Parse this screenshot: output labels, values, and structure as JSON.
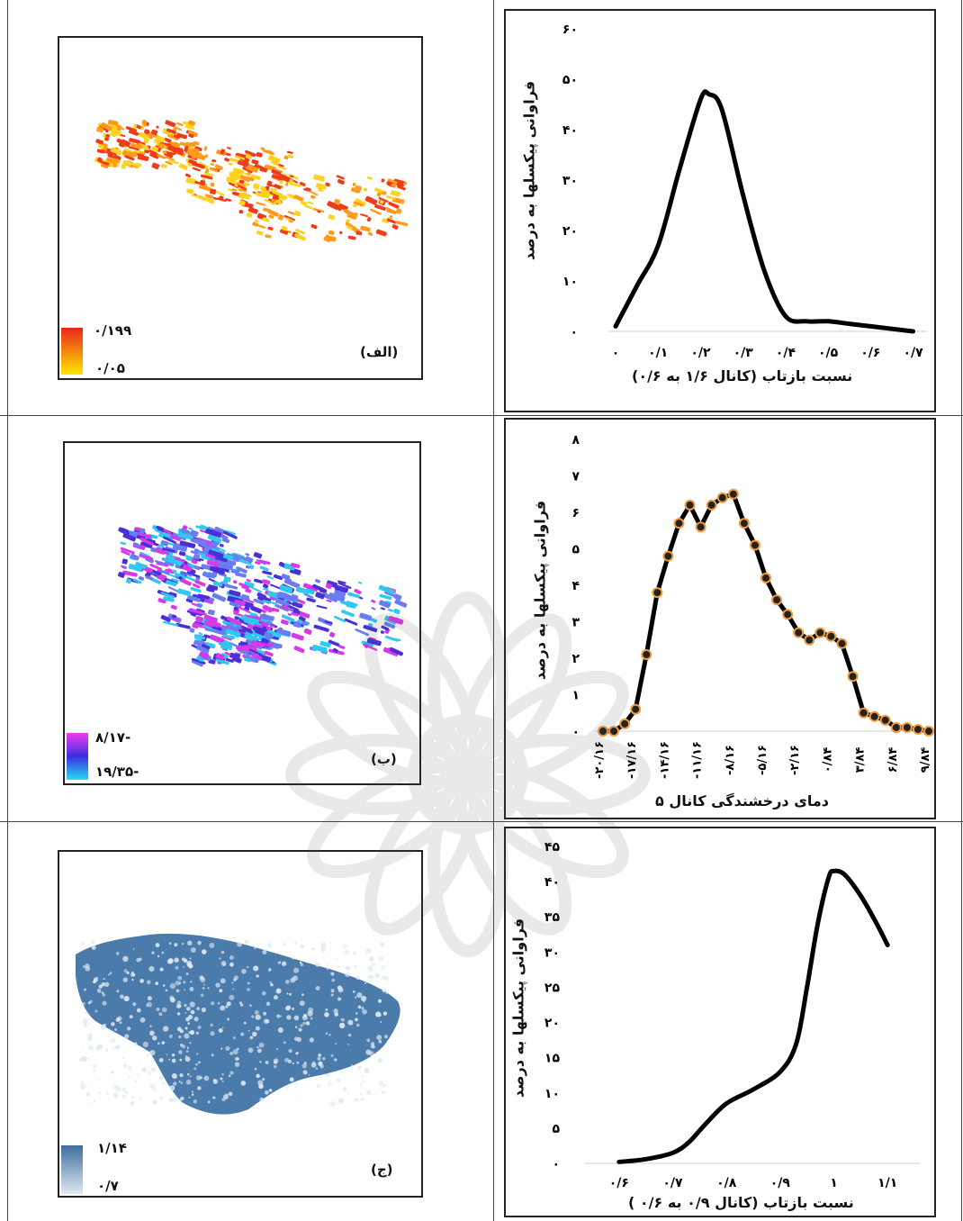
{
  "panels": [
    {
      "id": "alef",
      "label": "(الف)",
      "legend": {
        "max": "۰/۱۹۹",
        "min": "۰/۰۵",
        "colors": [
          "#e8261b",
          "#ffe600"
        ]
      },
      "map_colors": [
        "#ee3b1c",
        "#ff9a1a",
        "#ffd21f"
      ]
    },
    {
      "id": "be",
      "label": "(ب)",
      "legend": {
        "max": "-۸/۱۷",
        "min": "-۱۹/۳۵",
        "colors": [
          "#f33cf0",
          "#3a2ee0",
          "#2ad9f7"
        ]
      },
      "map_colors": [
        "#d63ae8",
        "#4b2fd9",
        "#6a7cf2",
        "#2fc8ef"
      ]
    },
    {
      "id": "jim",
      "label": "(ج)",
      "legend": {
        "max": "۱/۱۴",
        "min": "۰/۷",
        "colors": [
          "#3f6d9c",
          "#dfe9f3"
        ]
      },
      "map_colors": [
        "#4a7bab",
        "#dfe9f3"
      ]
    }
  ],
  "chart_data": [
    {
      "type": "line",
      "xlabel": "نسبت بازتاب (کانال ۱/۶ به ۰/۶)",
      "ylabel": "فراوانی پیکسلها به درصد",
      "x_ticks": [
        {
          "value": 0,
          "label": "۰"
        },
        {
          "value": 0.1,
          "label": "۰/۱"
        },
        {
          "value": 0.2,
          "label": "۰/۲"
        },
        {
          "value": 0.3,
          "label": "۰/۳"
        },
        {
          "value": 0.4,
          "label": "۰/۴"
        },
        {
          "value": 0.5,
          "label": "۰/۵"
        },
        {
          "value": 0.6,
          "label": "۰/۶"
        },
        {
          "value": 0.7,
          "label": "۰/۷"
        }
      ],
      "y_ticks": [
        {
          "value": 0,
          "label": "۰"
        },
        {
          "value": 10,
          "label": "۱۰"
        },
        {
          "value": 20,
          "label": "۲۰"
        },
        {
          "value": 30,
          "label": "۳۰"
        },
        {
          "value": 40,
          "label": "۴۰"
        },
        {
          "value": 50,
          "label": "۵۰"
        },
        {
          "value": 60,
          "label": "۶۰"
        }
      ],
      "xlim": [
        0,
        0.72
      ],
      "ylim": [
        0,
        60
      ],
      "x": [
        0,
        0.05,
        0.1,
        0.15,
        0.2,
        0.22,
        0.25,
        0.3,
        0.35,
        0.4,
        0.45,
        0.5,
        0.55,
        0.6,
        0.65,
        0.7
      ],
      "y": [
        1,
        9,
        17,
        32,
        46,
        47,
        44,
        27,
        12,
        3,
        2,
        2,
        1.5,
        1,
        0.5,
        0
      ],
      "markers": false,
      "grid": false
    },
    {
      "type": "line",
      "xlabel": "دمای درخشندگی کانال ۵",
      "ylabel": "فراوانی پیکسلها به درصد",
      "x_ticks": [
        {
          "value": -20.16,
          "label": "-۲۰/۱۶"
        },
        {
          "value": -17.16,
          "label": "-۱۷/۱۶"
        },
        {
          "value": -14.16,
          "label": "-۱۴/۱۶"
        },
        {
          "value": -11.16,
          "label": "-۱۱/۱۶"
        },
        {
          "value": -8.16,
          "label": "-۸/۱۶"
        },
        {
          "value": -5.16,
          "label": "-۵/۱۶"
        },
        {
          "value": -2.16,
          "label": "-۲/۱۶"
        },
        {
          "value": 0.84,
          "label": "۰/۸۴"
        },
        {
          "value": 3.84,
          "label": "۳/۸۴"
        },
        {
          "value": 6.84,
          "label": "۶/۸۴"
        },
        {
          "value": 9.84,
          "label": "۹/۸۴"
        }
      ],
      "y_ticks": [
        {
          "value": 0,
          "label": "۰"
        },
        {
          "value": 1,
          "label": "۱"
        },
        {
          "value": 2,
          "label": "۲"
        },
        {
          "value": 3,
          "label": "۳"
        },
        {
          "value": 4,
          "label": "۴"
        },
        {
          "value": 5,
          "label": "۵"
        },
        {
          "value": 6,
          "label": "۶"
        },
        {
          "value": 7,
          "label": "۷"
        },
        {
          "value": 8,
          "label": "۸"
        }
      ],
      "xlim": [
        -20.16,
        9.84
      ],
      "ylim": [
        0,
        8
      ],
      "x": [
        -20.16,
        -19.16,
        -18.16,
        -17.16,
        -16.16,
        -15.16,
        -14.16,
        -13.16,
        -12.16,
        -11.16,
        -10.16,
        -9.16,
        -8.16,
        -7.16,
        -6.16,
        -5.16,
        -4.16,
        -3.16,
        -2.16,
        -1.16,
        -0.16,
        0.84,
        1.84,
        2.84,
        3.84,
        4.84,
        5.84,
        6.84,
        7.84,
        8.84,
        9.84
      ],
      "y": [
        0,
        0,
        0.2,
        0.6,
        2.1,
        3.8,
        4.8,
        5.7,
        6.2,
        5.6,
        6.2,
        6.4,
        6.5,
        5.7,
        5.1,
        4.2,
        3.6,
        3.2,
        2.7,
        2.5,
        2.7,
        2.6,
        2.4,
        1.5,
        0.5,
        0.4,
        0.3,
        0.1,
        0.1,
        0.05,
        0
      ],
      "markers": true,
      "marker_color": "#f29a3a",
      "grid": false
    },
    {
      "type": "line",
      "xlabel": "نسبت بازتاب (کانال ۰/۹ به ۰/۶ )",
      "ylabel": "فراوانی پیکسلها به درصد",
      "x_ticks": [
        {
          "value": 0.6,
          "label": "۰/۶"
        },
        {
          "value": 0.7,
          "label": "۰/۷"
        },
        {
          "value": 0.8,
          "label": "۰/۸"
        },
        {
          "value": 0.9,
          "label": "۰/۹"
        },
        {
          "value": 1.0,
          "label": "۱"
        },
        {
          "value": 1.1,
          "label": "۱/۱"
        }
      ],
      "y_ticks": [
        {
          "value": 0,
          "label": "۰"
        },
        {
          "value": 5,
          "label": "۵"
        },
        {
          "value": 10,
          "label": "۱۰"
        },
        {
          "value": 15,
          "label": "۱۵"
        },
        {
          "value": 20,
          "label": "۲۰"
        },
        {
          "value": 25,
          "label": "۲۵"
        },
        {
          "value": 30,
          "label": "۳۰"
        },
        {
          "value": 35,
          "label": "۳۵"
        },
        {
          "value": 40,
          "label": "۴۰"
        },
        {
          "value": 45,
          "label": "۴۵"
        }
      ],
      "xlim": [
        0.55,
        1.15
      ],
      "ylim": [
        0,
        45
      ],
      "x": [
        0.6,
        0.65,
        0.7,
        0.73,
        0.76,
        0.8,
        0.85,
        0.9,
        0.93,
        0.95,
        0.97,
        0.99,
        1.0,
        1.02,
        1.05,
        1.08,
        1.1
      ],
      "y": [
        0.2,
        0.6,
        1.5,
        3,
        5.5,
        8.5,
        10.5,
        13,
        17,
        25,
        34,
        40.5,
        41.5,
        41,
        38,
        34,
        31
      ],
      "markers": false,
      "grid": false
    }
  ]
}
